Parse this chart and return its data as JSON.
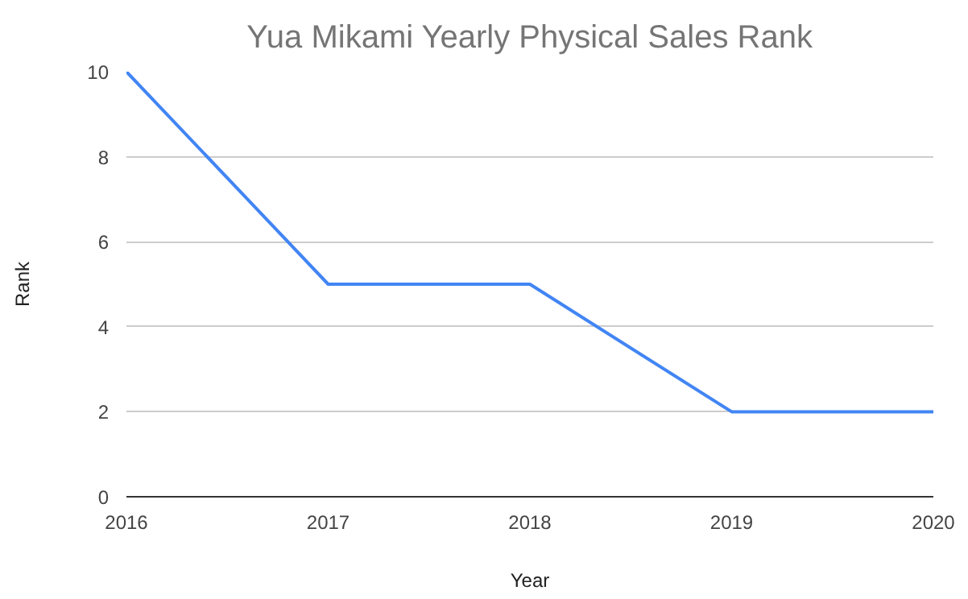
{
  "chart_data": {
    "type": "line",
    "title": "Yua Mikami Yearly Physical Sales Rank",
    "xlabel": "Year",
    "ylabel": "Rank",
    "x": [
      2016,
      2017,
      2018,
      2019,
      2020
    ],
    "series": [
      {
        "color": "#4285f4",
        "values": [
          10,
          5,
          5,
          2,
          2
        ]
      }
    ],
    "xlim": [
      2016,
      2020
    ],
    "xticks": [
      2016,
      2017,
      2018,
      2019,
      2020
    ],
    "ylim": [
      0,
      10
    ],
    "yticks": [
      0,
      2,
      4,
      6,
      8,
      10
    ],
    "grid": "y",
    "marker": "none",
    "line_style": "solid"
  }
}
